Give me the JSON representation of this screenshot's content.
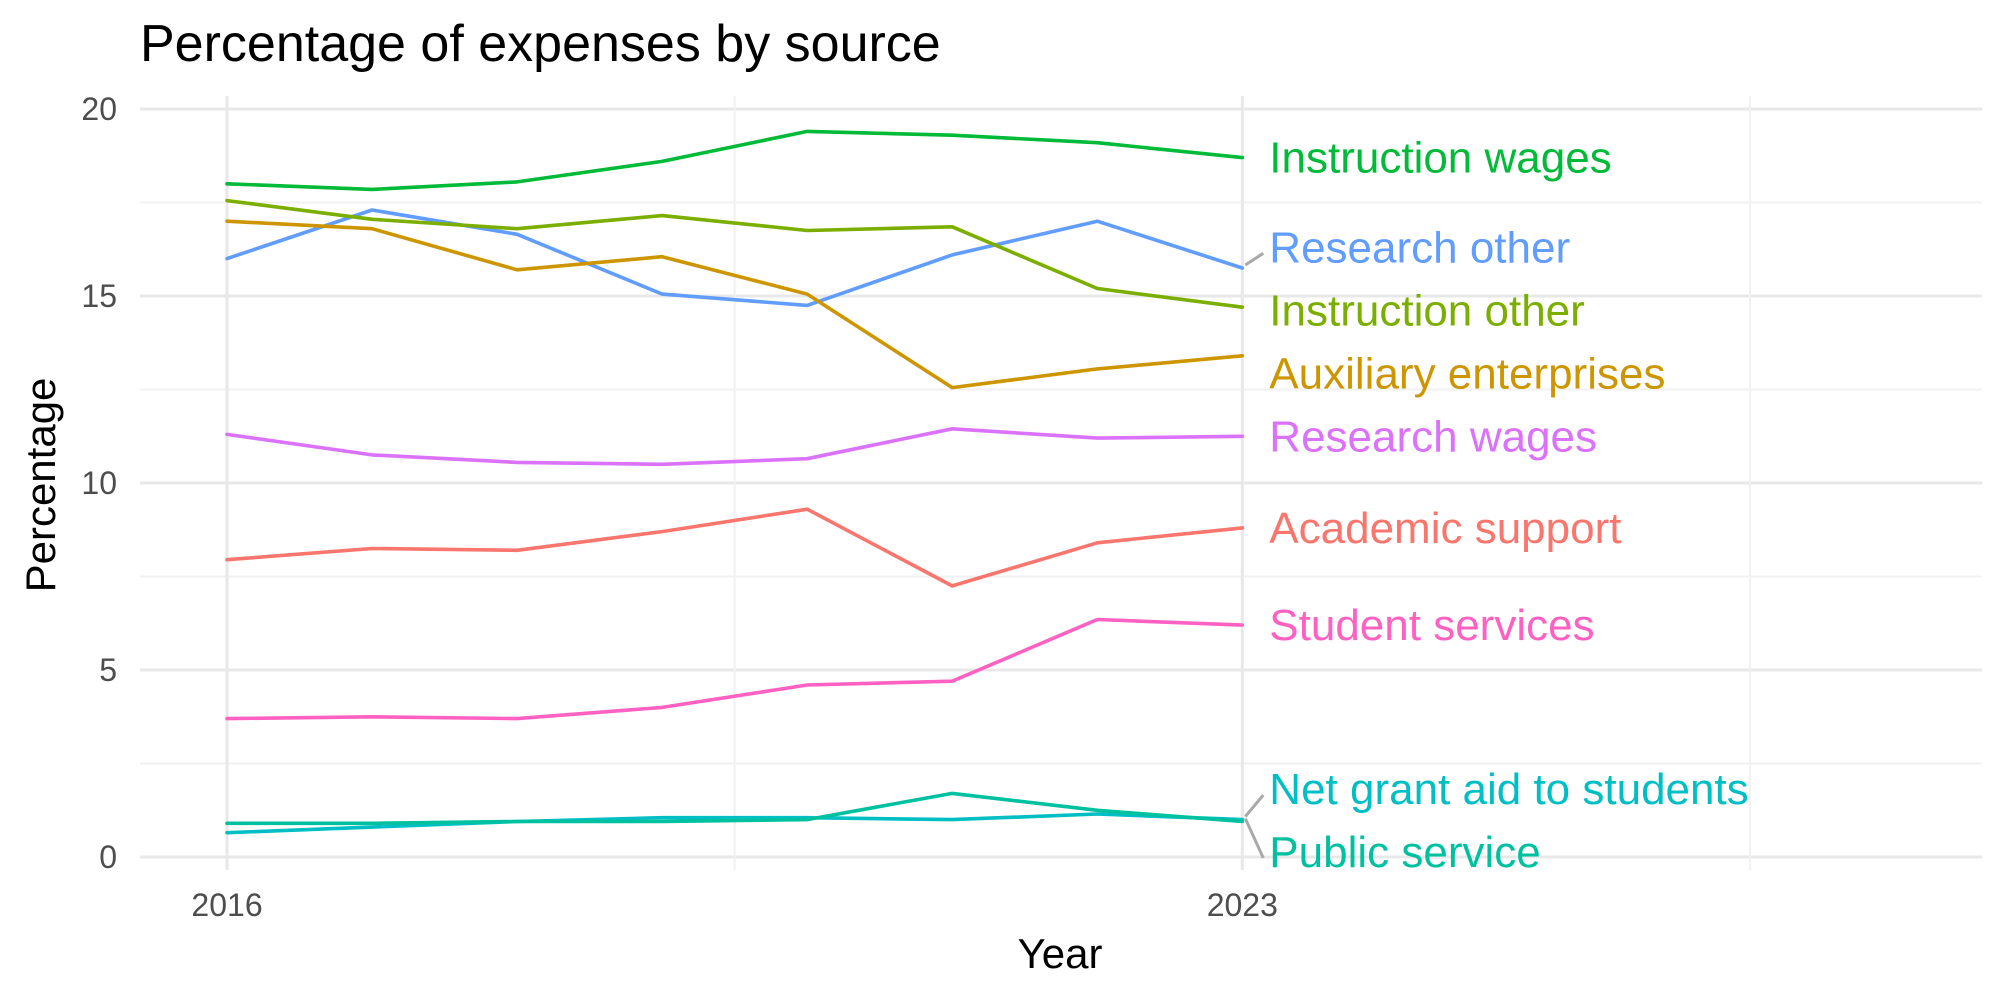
{
  "chart_data": {
    "type": "line",
    "title": "Percentage of expenses by source",
    "xlabel": "Year",
    "ylabel": "Percentage",
    "x": [
      2016,
      2017,
      2018,
      2019,
      2020,
      2021,
      2022,
      2023
    ],
    "xlim": [
      2015.4,
      2028.1
    ],
    "ylim": [
      0,
      20
    ],
    "x_ticks": [
      2016,
      2023
    ],
    "x_tick_labels": [
      "2016",
      "2023"
    ],
    "y_ticks": [
      0,
      5,
      10,
      15,
      20
    ],
    "y_tick_labels": [
      "0",
      "5",
      "10",
      "15",
      "20"
    ],
    "grid": true,
    "legend": "direct labels at right end of lines",
    "series": [
      {
        "name": "Instruction wages",
        "color": "#00BA38",
        "values": [
          18.0,
          17.85,
          18.05,
          18.6,
          19.4,
          19.3,
          19.1,
          18.7
        ]
      },
      {
        "name": "Research other",
        "color": "#619CFF",
        "values": [
          16.0,
          17.3,
          16.65,
          15.05,
          14.75,
          16.1,
          17.0,
          15.75
        ]
      },
      {
        "name": "Instruction other",
        "color": "#7CAE00",
        "values": [
          17.55,
          17.05,
          16.8,
          17.15,
          16.75,
          16.85,
          15.2,
          14.7
        ]
      },
      {
        "name": "Auxiliary enterprises",
        "color": "#CD9600",
        "values": [
          17.0,
          16.8,
          15.7,
          16.05,
          15.05,
          12.55,
          13.05,
          13.4
        ]
      },
      {
        "name": "Research wages",
        "color": "#DB72FB",
        "values": [
          11.3,
          10.75,
          10.55,
          10.5,
          10.65,
          11.45,
          11.2,
          11.25
        ]
      },
      {
        "name": "Academic support",
        "color": "#F8766D",
        "values": [
          7.95,
          8.25,
          8.2,
          8.7,
          9.3,
          7.25,
          8.4,
          8.8
        ]
      },
      {
        "name": "Student services",
        "color": "#FF61C3",
        "values": [
          3.7,
          3.75,
          3.7,
          4.0,
          4.6,
          4.7,
          6.35,
          6.2
        ]
      },
      {
        "name": "Net grant aid to students",
        "color": "#00BFC4",
        "values": [
          0.65,
          0.8,
          0.95,
          1.05,
          1.05,
          1.0,
          1.15,
          1.0
        ]
      },
      {
        "name": "Public service",
        "color": "#00C19F",
        "values": [
          0.9,
          0.9,
          0.95,
          0.95,
          1.0,
          1.7,
          1.25,
          0.95
        ]
      }
    ]
  }
}
